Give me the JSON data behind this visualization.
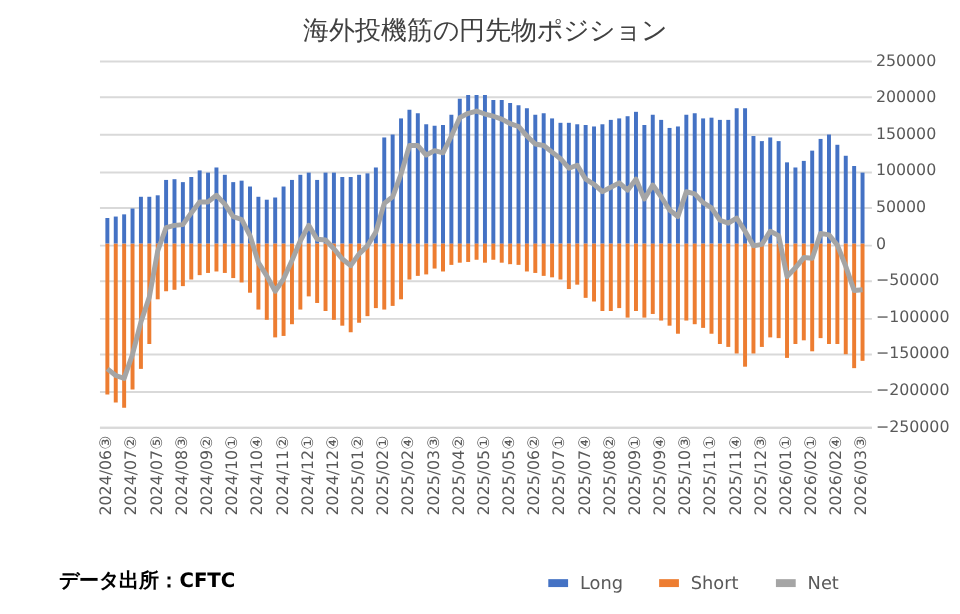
{
  "chart_data": {
    "type": "bar",
    "title": "海外投機筋の円先物ポジション",
    "categories": [
      "2024/06③",
      null,
      null,
      "2024/07②",
      null,
      null,
      "2024/07⑤",
      null,
      null,
      "2024/08③",
      null,
      null,
      "2024/09②",
      null,
      null,
      "2024/10①",
      null,
      null,
      "2024/10④",
      null,
      null,
      "2024/11②",
      null,
      null,
      "2024/12①",
      null,
      null,
      "2024/12④",
      null,
      null,
      "2025/01②",
      null,
      null,
      "2025/02①",
      null,
      null,
      "2025/02④",
      null,
      null,
      "2025/03③",
      null,
      null,
      "2025/04②",
      null,
      null,
      "2025/05①",
      null,
      null,
      "2025/05④",
      null,
      null,
      "2025/06②",
      null,
      null,
      "2025/07①",
      null,
      null,
      "2025/07④",
      null,
      null,
      "2025/08②",
      null,
      null,
      "2025/09①",
      null,
      null,
      "2025/09④",
      null,
      null,
      "2025/10③",
      null,
      null,
      "2025/11①",
      null,
      null,
      "2025/11④",
      null,
      null,
      "2025/12③",
      null,
      null,
      "2026/01①",
      null,
      null,
      "2026/02①",
      null,
      null,
      "2026/02④",
      null,
      null,
      "2026/03③"
    ],
    "series": [
      {
        "name": "Long",
        "type": "bar",
        "color": "#4472c4",
        "values": [
          35000,
          37000,
          40000,
          48000,
          64000,
          64000,
          66000,
          87000,
          88000,
          84000,
          91000,
          100000,
          97000,
          104000,
          94000,
          84000,
          86000,
          78000,
          64000,
          60000,
          63000,
          78000,
          87000,
          94000,
          97000,
          87000,
          97000,
          97000,
          91000,
          91000,
          94000,
          96000,
          104000,
          145000,
          149000,
          171000,
          183000,
          178000,
          163000,
          161000,
          162000,
          176000,
          198000,
          203000,
          203000,
          203000,
          196000,
          196000,
          192000,
          189000,
          185000,
          176000,
          178000,
          171000,
          165000,
          165000,
          163000,
          162000,
          160000,
          163000,
          169000,
          171000,
          174000,
          180000,
          162000,
          176000,
          169000,
          158000,
          160000,
          176000,
          178000,
          171000,
          172000,
          169000,
          169000,
          185000,
          185000,
          147000,
          140000,
          145000,
          140000,
          111000,
          104000,
          113000,
          127000,
          143000,
          149000,
          135000,
          120000,
          106000,
          97000
        ]
      },
      {
        "name": "Short",
        "type": "bar",
        "color": "#ed7d31",
        "values": [
          -206000,
          -217000,
          -224000,
          -199000,
          -171000,
          -137000,
          -76000,
          -65000,
          -63000,
          -58000,
          -49000,
          -43000,
          -40000,
          -38000,
          -40000,
          -47000,
          -53000,
          -67000,
          -90000,
          -104000,
          -128000,
          -126000,
          -110000,
          -90000,
          -72000,
          -81000,
          -92000,
          -104000,
          -112000,
          -121000,
          -108000,
          -99000,
          -88000,
          -90000,
          -85000,
          -76000,
          -49000,
          -44000,
          -42000,
          -34000,
          -38000,
          -29000,
          -26000,
          -25000,
          -22000,
          -26000,
          -22000,
          -26000,
          -28000,
          -29000,
          -38000,
          -40000,
          -44000,
          -46000,
          -49000,
          -62000,
          -56000,
          -74000,
          -79000,
          -92000,
          -92000,
          -88000,
          -101000,
          -92000,
          -101000,
          -96000,
          -105000,
          -112000,
          -123000,
          -105000,
          -110000,
          -115000,
          -123000,
          -137000,
          -141000,
          -150000,
          -168000,
          -150000,
          -141000,
          -128000,
          -129000,
          -156000,
          -137000,
          -132000,
          -147000,
          -129000,
          -137000,
          -137000,
          -151000,
          -170000,
          -160000
        ]
      },
      {
        "name": "Net",
        "type": "line",
        "color": "#a5a5a5",
        "values": [
          -171000,
          -180000,
          -184000,
          -151000,
          -107000,
          -73000,
          -10000,
          22000,
          25000,
          26000,
          42000,
          57000,
          57000,
          66000,
          54000,
          37000,
          33000,
          11000,
          -26000,
          -44000,
          -65000,
          -48000,
          -23000,
          4000,
          25000,
          6000,
          5000,
          -7000,
          -21000,
          -30000,
          -14000,
          -3000,
          16000,
          55000,
          64000,
          95000,
          134000,
          134000,
          121000,
          127000,
          124000,
          147000,
          172000,
          178000,
          181000,
          177000,
          174000,
          170000,
          164000,
          160000,
          147000,
          136000,
          134000,
          125000,
          116000,
          103000,
          107000,
          88000,
          81000,
          71000,
          77000,
          83000,
          73000,
          88000,
          61000,
          80000,
          64000,
          46000,
          37000,
          71000,
          68000,
          56000,
          49000,
          32000,
          28000,
          35000,
          17000,
          -3000,
          -1000,
          17000,
          11000,
          -45000,
          -33000,
          -19000,
          -20000,
          14000,
          12000,
          -2000,
          -31000,
          -64000,
          -63000
        ]
      }
    ],
    "ylim": [
      -250000,
      250000
    ],
    "yticks": [
      -250000,
      -200000,
      -150000,
      -100000,
      -50000,
      0,
      50000,
      100000,
      150000,
      200000,
      250000
    ],
    "grid": "y",
    "legend": "bottom right",
    "annotations": [
      "データ出所：CFTC"
    ]
  }
}
